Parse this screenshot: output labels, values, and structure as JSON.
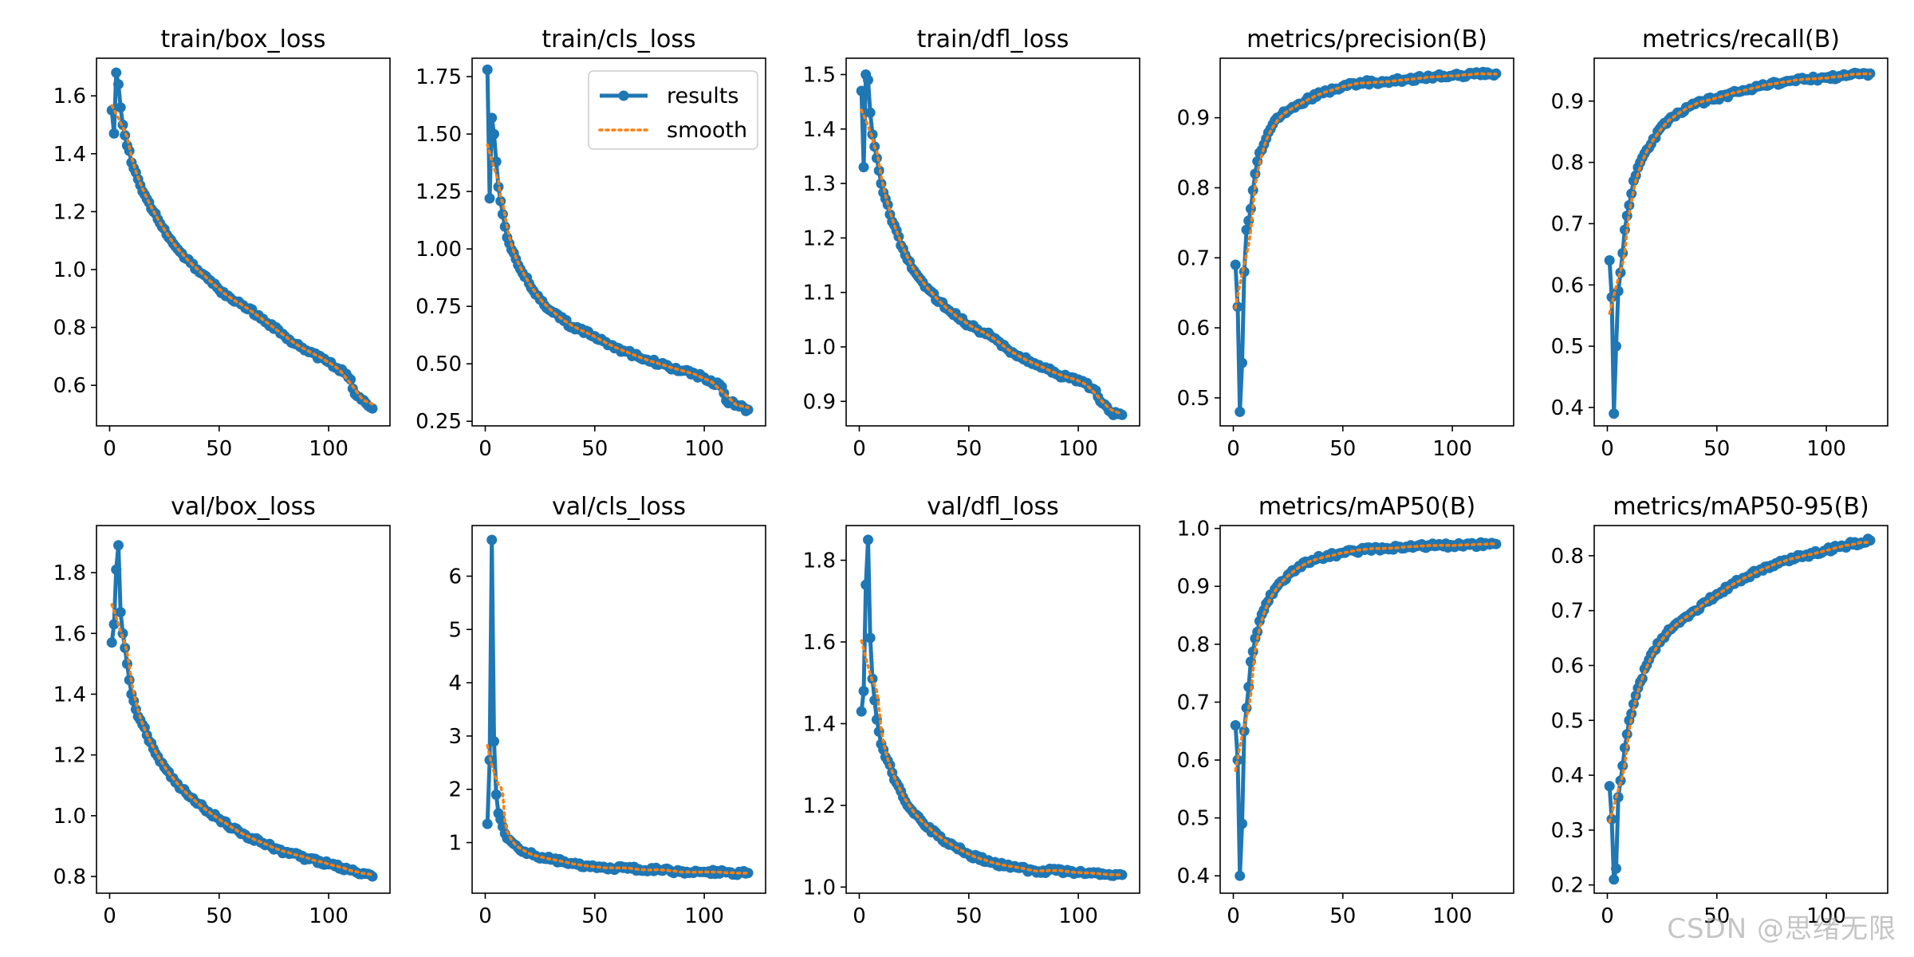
{
  "figure": {
    "layout": "2 rows x 5 columns",
    "legend": {
      "location": "top-right of train/cls_loss panel",
      "entries": [
        "results",
        "smooth"
      ]
    },
    "watermark": "CSDN @思绪无限"
  },
  "colors": {
    "results": "#1f77b4",
    "smooth": "#ff7f0e",
    "axis": "#000000",
    "background": "#ffffff"
  },
  "chart_data": [
    {
      "id": "train_box_loss",
      "type": "line",
      "title": "train/box_loss",
      "xlim": [
        -6,
        128
      ],
      "ylim": [
        0.46,
        1.73
      ],
      "xticks": [
        0,
        50,
        100
      ],
      "yticks": [
        0.6,
        0.8,
        1.0,
        1.2,
        1.4,
        1.6
      ],
      "ytick_labels": [
        "0.6",
        "0.8",
        "1.0",
        "1.2",
        "1.4",
        "1.6"
      ],
      "anchors": [
        [
          1,
          1.55
        ],
        [
          2,
          1.47
        ],
        [
          3,
          1.68
        ],
        [
          4,
          1.64
        ],
        [
          5,
          1.56
        ],
        [
          6,
          1.5
        ],
        [
          10,
          1.37
        ],
        [
          15,
          1.27
        ],
        [
          20,
          1.2
        ],
        [
          25,
          1.14
        ],
        [
          30,
          1.08
        ],
        [
          40,
          1.0
        ],
        [
          50,
          0.93
        ],
        [
          60,
          0.88
        ],
        [
          70,
          0.83
        ],
        [
          80,
          0.77
        ],
        [
          90,
          0.72
        ],
        [
          100,
          0.68
        ],
        [
          108,
          0.64
        ],
        [
          110,
          0.62
        ],
        [
          112,
          0.57
        ],
        [
          115,
          0.55
        ],
        [
          118,
          0.53
        ],
        [
          120,
          0.52
        ]
      ],
      "points": 120
    },
    {
      "id": "train_cls_loss",
      "type": "line",
      "title": "train/cls_loss",
      "xlim": [
        -6,
        128
      ],
      "ylim": [
        0.23,
        1.83
      ],
      "xticks": [
        0,
        50,
        100
      ],
      "yticks": [
        0.25,
        0.5,
        0.75,
        1.0,
        1.25,
        1.5,
        1.75
      ],
      "ytick_labels": [
        "0.25",
        "0.50",
        "0.75",
        "1.00",
        "1.25",
        "1.50",
        "1.75"
      ],
      "anchors": [
        [
          1,
          1.78
        ],
        [
          2,
          1.22
        ],
        [
          3,
          1.57
        ],
        [
          4,
          1.5
        ],
        [
          5,
          1.38
        ],
        [
          6,
          1.27
        ],
        [
          10,
          1.05
        ],
        [
          15,
          0.93
        ],
        [
          20,
          0.85
        ],
        [
          25,
          0.78
        ],
        [
          30,
          0.73
        ],
        [
          40,
          0.66
        ],
        [
          50,
          0.62
        ],
        [
          60,
          0.57
        ],
        [
          70,
          0.53
        ],
        [
          80,
          0.5
        ],
        [
          90,
          0.47
        ],
        [
          100,
          0.44
        ],
        [
          108,
          0.4
        ],
        [
          110,
          0.34
        ],
        [
          115,
          0.32
        ],
        [
          120,
          0.3
        ]
      ],
      "points": 120
    },
    {
      "id": "train_dfl_loss",
      "type": "line",
      "title": "train/dfl_loss",
      "xlim": [
        -6,
        128
      ],
      "ylim": [
        0.855,
        1.53
      ],
      "xticks": [
        0,
        50,
        100
      ],
      "yticks": [
        0.9,
        1.0,
        1.1,
        1.2,
        1.3,
        1.4,
        1.5
      ],
      "ytick_labels": [
        "0.9",
        "1.0",
        "1.1",
        "1.2",
        "1.3",
        "1.4",
        "1.5"
      ],
      "anchors": [
        [
          1,
          1.47
        ],
        [
          2,
          1.33
        ],
        [
          3,
          1.5
        ],
        [
          4,
          1.49
        ],
        [
          5,
          1.43
        ],
        [
          6,
          1.39
        ],
        [
          10,
          1.3
        ],
        [
          15,
          1.23
        ],
        [
          20,
          1.18
        ],
        [
          25,
          1.14
        ],
        [
          30,
          1.11
        ],
        [
          40,
          1.07
        ],
        [
          50,
          1.04
        ],
        [
          60,
          1.02
        ],
        [
          70,
          0.99
        ],
        [
          80,
          0.97
        ],
        [
          90,
          0.95
        ],
        [
          100,
          0.94
        ],
        [
          108,
          0.92
        ],
        [
          110,
          0.9
        ],
        [
          115,
          0.88
        ],
        [
          120,
          0.875
        ]
      ],
      "points": 120
    },
    {
      "id": "metrics_precision",
      "type": "line",
      "title": "metrics/precision(B)",
      "xlim": [
        -6,
        128
      ],
      "ylim": [
        0.46,
        0.985
      ],
      "xticks": [
        0,
        50,
        100
      ],
      "yticks": [
        0.5,
        0.6,
        0.7,
        0.8,
        0.9
      ],
      "ytick_labels": [
        "0.5",
        "0.6",
        "0.7",
        "0.8",
        "0.9"
      ],
      "anchors": [
        [
          1,
          0.69
        ],
        [
          2,
          0.63
        ],
        [
          3,
          0.48
        ],
        [
          4,
          0.55
        ],
        [
          5,
          0.68
        ],
        [
          6,
          0.74
        ],
        [
          8,
          0.77
        ],
        [
          10,
          0.82
        ],
        [
          12,
          0.85
        ],
        [
          15,
          0.87
        ],
        [
          20,
          0.9
        ],
        [
          25,
          0.91
        ],
        [
          30,
          0.92
        ],
        [
          40,
          0.935
        ],
        [
          50,
          0.945
        ],
        [
          60,
          0.95
        ],
        [
          70,
          0.952
        ],
        [
          80,
          0.955
        ],
        [
          90,
          0.958
        ],
        [
          100,
          0.96
        ],
        [
          110,
          0.962
        ],
        [
          120,
          0.963
        ]
      ],
      "points": 120
    },
    {
      "id": "metrics_recall",
      "type": "line",
      "title": "metrics/recall(B)",
      "xlim": [
        -6,
        128
      ],
      "ylim": [
        0.37,
        0.97
      ],
      "xticks": [
        0,
        50,
        100
      ],
      "yticks": [
        0.4,
        0.5,
        0.6,
        0.7,
        0.8,
        0.9
      ],
      "ytick_labels": [
        "0.4",
        "0.5",
        "0.6",
        "0.7",
        "0.8",
        "0.9"
      ],
      "anchors": [
        [
          1,
          0.64
        ],
        [
          2,
          0.58
        ],
        [
          3,
          0.39
        ],
        [
          4,
          0.5
        ],
        [
          5,
          0.59
        ],
        [
          6,
          0.62
        ],
        [
          8,
          0.69
        ],
        [
          10,
          0.73
        ],
        [
          12,
          0.77
        ],
        [
          15,
          0.8
        ],
        [
          20,
          0.83
        ],
        [
          25,
          0.86
        ],
        [
          30,
          0.875
        ],
        [
          40,
          0.895
        ],
        [
          50,
          0.905
        ],
        [
          60,
          0.915
        ],
        [
          70,
          0.925
        ],
        [
          80,
          0.93
        ],
        [
          90,
          0.935
        ],
        [
          100,
          0.938
        ],
        [
          110,
          0.942
        ],
        [
          120,
          0.945
        ]
      ],
      "points": 120
    },
    {
      "id": "val_box_loss",
      "type": "line",
      "title": "val/box_loss",
      "xlim": [
        -6,
        128
      ],
      "ylim": [
        0.745,
        1.955
      ],
      "xticks": [
        0,
        50,
        100
      ],
      "yticks": [
        0.8,
        1.0,
        1.2,
        1.4,
        1.6,
        1.8
      ],
      "ytick_labels": [
        "0.8",
        "1.0",
        "1.2",
        "1.4",
        "1.6",
        "1.8"
      ],
      "anchors": [
        [
          1,
          1.57
        ],
        [
          2,
          1.63
        ],
        [
          3,
          1.81
        ],
        [
          4,
          1.89
        ],
        [
          5,
          1.67
        ],
        [
          6,
          1.6
        ],
        [
          8,
          1.5
        ],
        [
          10,
          1.4
        ],
        [
          12,
          1.35
        ],
        [
          15,
          1.3
        ],
        [
          20,
          1.22
        ],
        [
          25,
          1.16
        ],
        [
          30,
          1.11
        ],
        [
          40,
          1.04
        ],
        [
          50,
          0.99
        ],
        [
          60,
          0.94
        ],
        [
          70,
          0.91
        ],
        [
          80,
          0.88
        ],
        [
          90,
          0.86
        ],
        [
          100,
          0.84
        ],
        [
          110,
          0.82
        ],
        [
          120,
          0.8
        ]
      ],
      "points": 120
    },
    {
      "id": "val_cls_loss",
      "type": "line",
      "title": "val/cls_loss",
      "xlim": [
        -6,
        128
      ],
      "ylim": [
        0.05,
        6.95
      ],
      "xticks": [
        0,
        50,
        100
      ],
      "yticks": [
        1,
        2,
        3,
        4,
        5,
        6
      ],
      "ytick_labels": [
        "1",
        "2",
        "3",
        "4",
        "5",
        "6"
      ],
      "anchors": [
        [
          1,
          1.35
        ],
        [
          2,
          2.55
        ],
        [
          3,
          6.68
        ],
        [
          4,
          2.9
        ],
        [
          5,
          1.9
        ],
        [
          6,
          1.55
        ],
        [
          8,
          1.3
        ],
        [
          10,
          1.08
        ],
        [
          15,
          0.9
        ],
        [
          20,
          0.8
        ],
        [
          30,
          0.68
        ],
        [
          40,
          0.6
        ],
        [
          50,
          0.55
        ],
        [
          60,
          0.52
        ],
        [
          70,
          0.5
        ],
        [
          80,
          0.48
        ],
        [
          90,
          0.46
        ],
        [
          100,
          0.45
        ],
        [
          110,
          0.44
        ],
        [
          120,
          0.43
        ]
      ],
      "points": 120
    },
    {
      "id": "val_dfl_loss",
      "type": "line",
      "title": "val/dfl_loss",
      "xlim": [
        -6,
        128
      ],
      "ylim": [
        0.985,
        1.885
      ],
      "xticks": [
        0,
        50,
        100
      ],
      "yticks": [
        1.0,
        1.2,
        1.4,
        1.6,
        1.8
      ],
      "ytick_labels": [
        "1.0",
        "1.2",
        "1.4",
        "1.6",
        "1.8"
      ],
      "anchors": [
        [
          1,
          1.43
        ],
        [
          2,
          1.48
        ],
        [
          3,
          1.74
        ],
        [
          4,
          1.85
        ],
        [
          5,
          1.61
        ],
        [
          6,
          1.51
        ],
        [
          8,
          1.41
        ],
        [
          10,
          1.35
        ],
        [
          15,
          1.28
        ],
        [
          20,
          1.22
        ],
        [
          25,
          1.18
        ],
        [
          30,
          1.15
        ],
        [
          40,
          1.11
        ],
        [
          50,
          1.08
        ],
        [
          60,
          1.06
        ],
        [
          70,
          1.05
        ],
        [
          80,
          1.04
        ],
        [
          90,
          1.04
        ],
        [
          100,
          1.035
        ],
        [
          110,
          1.03
        ],
        [
          120,
          1.03
        ]
      ],
      "points": 120
    },
    {
      "id": "metrics_map50",
      "type": "line",
      "title": "metrics/mAP50(B)",
      "xlim": [
        -6,
        128
      ],
      "ylim": [
        0.37,
        1.005
      ],
      "xticks": [
        0,
        50,
        100
      ],
      "yticks": [
        0.4,
        0.5,
        0.6,
        0.7,
        0.8,
        0.9,
        1.0
      ],
      "ytick_labels": [
        "0.4",
        "0.5",
        "0.6",
        "0.7",
        "0.8",
        "0.9",
        "1.0"
      ],
      "anchors": [
        [
          1,
          0.66
        ],
        [
          2,
          0.6
        ],
        [
          3,
          0.4
        ],
        [
          4,
          0.49
        ],
        [
          5,
          0.65
        ],
        [
          6,
          0.69
        ],
        [
          8,
          0.77
        ],
        [
          10,
          0.81
        ],
        [
          12,
          0.84
        ],
        [
          15,
          0.87
        ],
        [
          20,
          0.9
        ],
        [
          25,
          0.92
        ],
        [
          30,
          0.935
        ],
        [
          40,
          0.95
        ],
        [
          50,
          0.958
        ],
        [
          60,
          0.963
        ],
        [
          70,
          0.966
        ],
        [
          80,
          0.968
        ],
        [
          90,
          0.97
        ],
        [
          100,
          0.971
        ],
        [
          110,
          0.972
        ],
        [
          120,
          0.973
        ]
      ],
      "points": 120
    },
    {
      "id": "metrics_map50_95",
      "type": "line",
      "title": "metrics/mAP50-95(B)",
      "xlim": [
        -6,
        128
      ],
      "ylim": [
        0.185,
        0.855
      ],
      "xticks": [
        0,
        50,
        100
      ],
      "yticks": [
        0.2,
        0.3,
        0.4,
        0.5,
        0.6,
        0.7,
        0.8
      ],
      "ytick_labels": [
        "0.2",
        "0.3",
        "0.4",
        "0.5",
        "0.6",
        "0.7",
        "0.8"
      ],
      "anchors": [
        [
          1,
          0.38
        ],
        [
          2,
          0.32
        ],
        [
          3,
          0.21
        ],
        [
          4,
          0.23
        ],
        [
          5,
          0.36
        ],
        [
          6,
          0.39
        ],
        [
          8,
          0.45
        ],
        [
          10,
          0.5
        ],
        [
          12,
          0.53
        ],
        [
          15,
          0.57
        ],
        [
          20,
          0.62
        ],
        [
          25,
          0.65
        ],
        [
          30,
          0.67
        ],
        [
          40,
          0.7
        ],
        [
          50,
          0.73
        ],
        [
          60,
          0.755
        ],
        [
          70,
          0.775
        ],
        [
          80,
          0.79
        ],
        [
          90,
          0.8
        ],
        [
          100,
          0.81
        ],
        [
          110,
          0.82
        ],
        [
          120,
          0.828
        ]
      ],
      "points": 120
    }
  ]
}
